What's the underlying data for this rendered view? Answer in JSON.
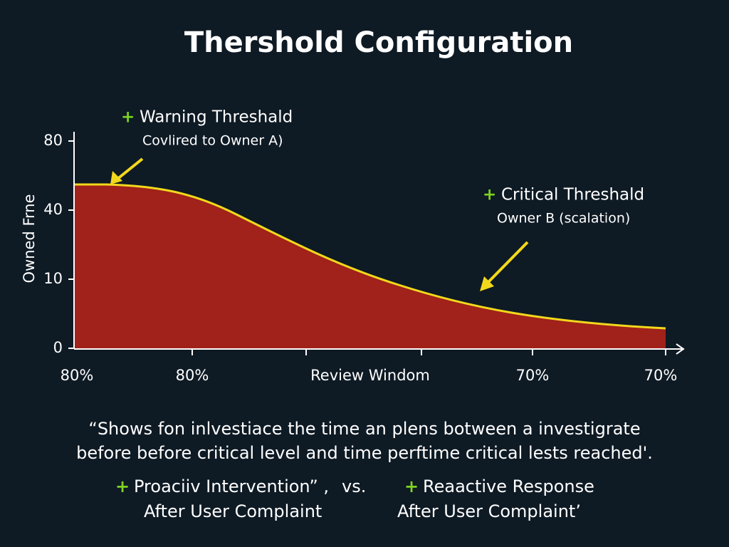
{
  "title": "Thershold Configuration",
  "bullet": "+",
  "warning": {
    "label": "Warning Threshald",
    "sub": "Covlired to Owner A)"
  },
  "critical": {
    "label": "Critical Threshald",
    "sub": "Owner B (scalation)"
  },
  "y_axis": {
    "title": "Owned Frne",
    "labels": [
      "80",
      "40",
      "10",
      "0"
    ]
  },
  "x_axis": {
    "labels": [
      "80%",
      "80%",
      "Review Windom",
      "70%",
      "70%"
    ]
  },
  "caption": [
    "“Shows fon inlvestiace the time an plens botween a investigrate",
    "before before critical level and time perftime critical lests reached'."
  ],
  "footer": {
    "left": "Proaciiv Intervention” ,",
    "vs": "vs.",
    "right": "Reaactive Response",
    "left_sub": "After User Complaint",
    "right_sub": "After User Complaint’"
  }
}
